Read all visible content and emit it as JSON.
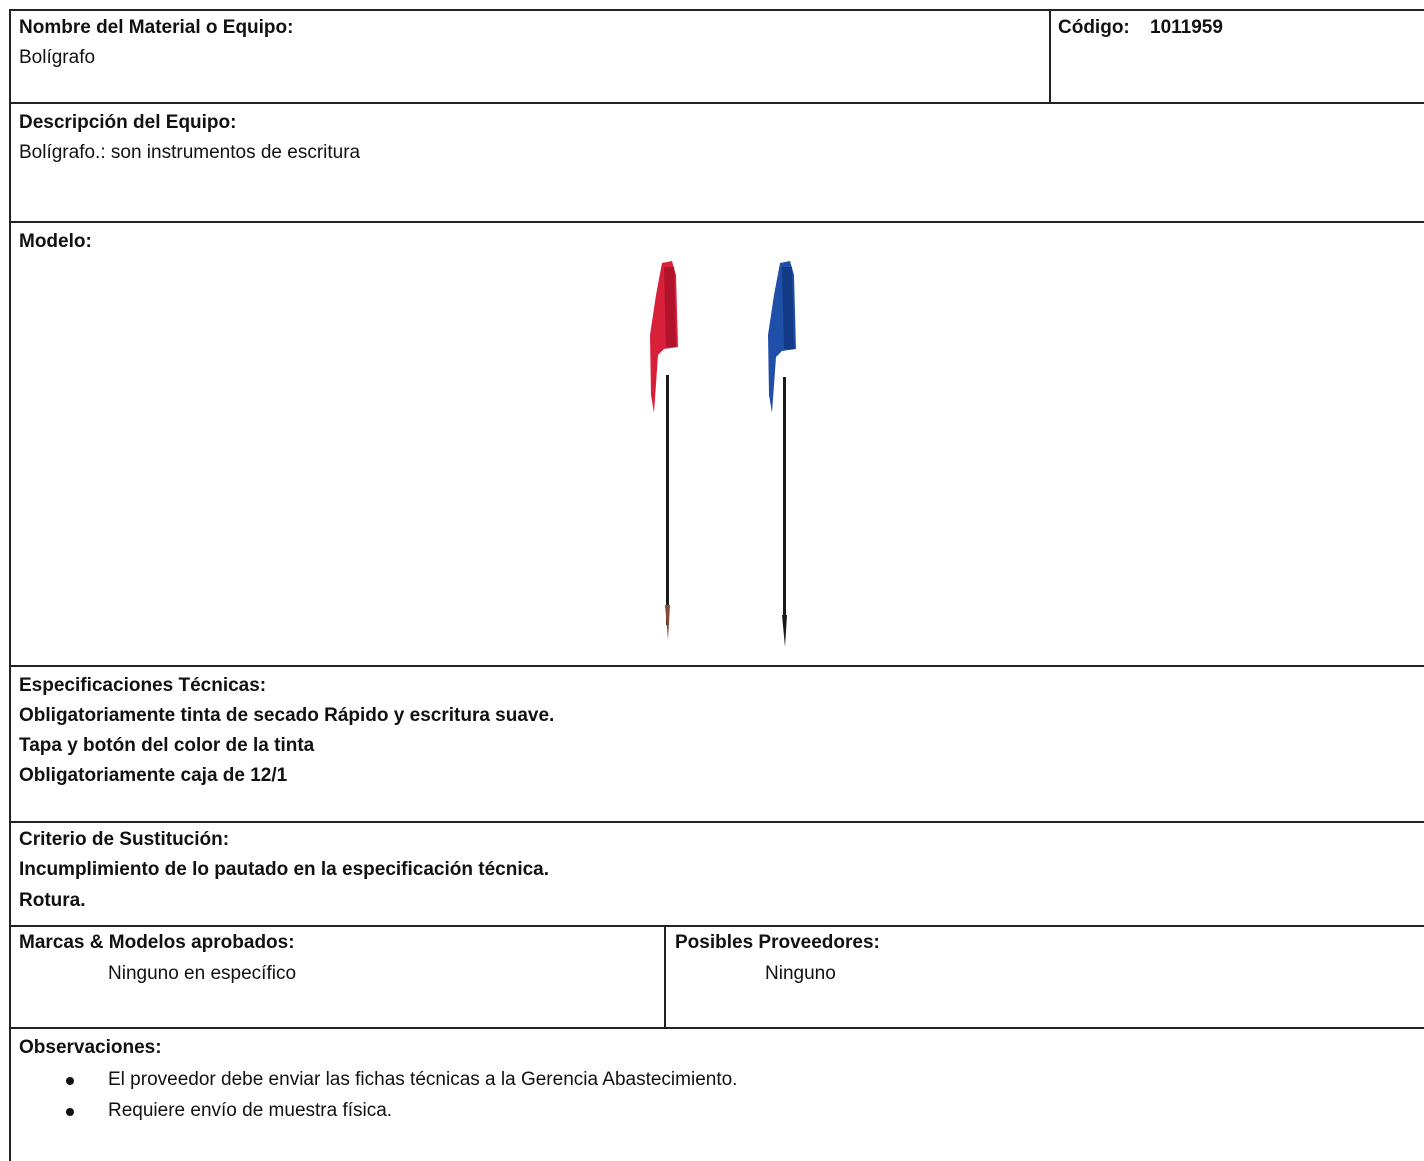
{
  "material": {
    "label": "Nombre del Material o Equipo:",
    "value": "Bolígrafo"
  },
  "codigo": {
    "label": "Código:",
    "value": "1011959"
  },
  "descripcion": {
    "label": "Descripción del Equipo:",
    "value": "Bolígrafo.: son instrumentos de escritura"
  },
  "modelo": {
    "label": "Modelo:"
  },
  "especificaciones": {
    "label": "Especificaciones Técnicas:",
    "lines": [
      "Obligatoriamente tinta de secado Rápido y escritura suave.",
      "Tapa y botón del color de la tinta",
      "Obligatoriamente caja de 12/1"
    ]
  },
  "criterio": {
    "label": "Criterio de Sustitución:",
    "lines": [
      "Incumplimiento de lo pautado en la especificación técnica.",
      "Rotura."
    ]
  },
  "marcas": {
    "label": "Marcas & Modelos aprobados:",
    "value": "Ninguno en específico"
  },
  "proveedores": {
    "label": "Posibles Proveedores:",
    "value": "Ninguno"
  },
  "observaciones": {
    "label": "Observaciones:",
    "items": [
      "El proveedor debe enviar las fichas técnicas a la Gerencia Abastecimiento.",
      "Requiere envío de muestra física."
    ]
  }
}
